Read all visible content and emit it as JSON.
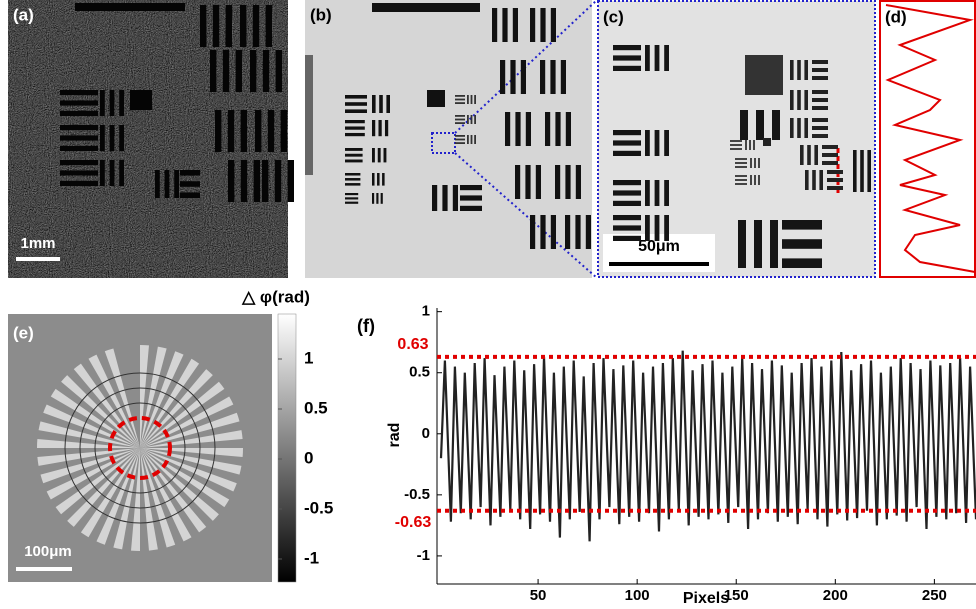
{
  "panels": {
    "a": {
      "label": "(a)",
      "scale_bar": "1mm"
    },
    "b": {
      "label": "(b)"
    },
    "c": {
      "label": "(c)",
      "scale_bar": "50μm"
    },
    "d": {
      "label": "(d)"
    },
    "e": {
      "label": "(e)",
      "scale_bar": "100μm"
    }
  },
  "colorbar": {
    "label": "△ φ(rad)",
    "lim": [
      -1.23,
      1.45
    ],
    "ticks": [
      1,
      0.5,
      0,
      -0.5,
      -1
    ]
  },
  "chart_data": {
    "type": "line",
    "panel_label": "(f)",
    "x_label": "Pixels",
    "y_label": "rad",
    "xlim": [
      0,
      271
    ],
    "ylim": [
      -1.23,
      1.03
    ],
    "xticks": [
      50,
      100,
      150,
      200,
      250
    ],
    "yticks": [
      1,
      0.5,
      0,
      -0.5,
      -1
    ],
    "reference_lines": [
      {
        "value": 0.63,
        "label": "0.63"
      },
      {
        "value": -0.63,
        "label": "-0.63"
      }
    ],
    "reference_color": "#e00000",
    "series": [
      {
        "color": "#222222",
        "x": [
          1,
          3,
          6,
          8,
          11,
          13,
          16,
          18,
          21,
          23,
          26,
          28,
          31,
          33,
          36,
          38,
          41,
          43,
          46,
          48,
          51,
          53,
          56,
          58,
          61,
          63,
          66,
          68,
          71,
          73,
          76,
          78,
          81,
          83,
          86,
          88,
          91,
          93,
          96,
          98,
          101,
          103,
          106,
          108,
          111,
          113,
          116,
          118,
          121,
          123,
          126,
          128,
          131,
          133,
          136,
          138,
          141,
          143,
          146,
          148,
          151,
          153,
          156,
          158,
          161,
          163,
          166,
          168,
          171,
          173,
          176,
          178,
          181,
          183,
          186,
          188,
          191,
          193,
          196,
          198,
          201,
          203,
          206,
          208,
          211,
          213,
          216,
          218,
          221,
          223,
          226,
          228,
          231,
          233,
          236,
          238,
          241,
          243,
          246,
          248,
          251,
          253,
          256,
          258,
          261,
          263,
          266,
          268,
          271
        ],
        "values": [
          -0.2,
          0.6,
          -0.72,
          0.55,
          -0.65,
          0.5,
          -0.7,
          0.58,
          -0.6,
          0.62,
          -0.75,
          0.48,
          -0.68,
          0.55,
          -0.62,
          0.6,
          -0.7,
          0.52,
          -0.78,
          0.57,
          -0.66,
          0.63,
          -0.72,
          0.5,
          -0.85,
          0.55,
          -0.7,
          0.6,
          -0.64,
          0.47,
          -0.88,
          0.58,
          -0.7,
          0.62,
          -0.6,
          0.53,
          -0.74,
          0.56,
          -0.68,
          0.6,
          -0.72,
          0.5,
          -0.65,
          0.55,
          -0.8,
          0.58,
          -0.7,
          0.62,
          -0.62,
          0.68,
          -0.75,
          0.52,
          -0.68,
          0.57,
          -0.7,
          0.6,
          -0.66,
          0.5,
          -0.73,
          0.55,
          -0.6,
          0.62,
          -0.78,
          0.58,
          -0.7,
          0.53,
          -0.65,
          0.6,
          -0.72,
          0.56,
          -0.68,
          0.5,
          -0.74,
          0.58,
          -0.62,
          0.62,
          -0.7,
          0.55,
          -0.76,
          0.6,
          -0.66,
          0.67,
          -0.71,
          0.52,
          -0.69,
          0.57,
          -0.63,
          0.6,
          -0.75,
          0.5,
          -0.7,
          0.55,
          -0.67,
          0.62,
          -0.72,
          0.58,
          -0.6,
          0.53,
          -0.78,
          0.6,
          -0.68,
          0.56,
          -0.7,
          0.58,
          -0.65,
          0.62,
          -0.73,
          0.55,
          -0.7
        ]
      }
    ]
  }
}
